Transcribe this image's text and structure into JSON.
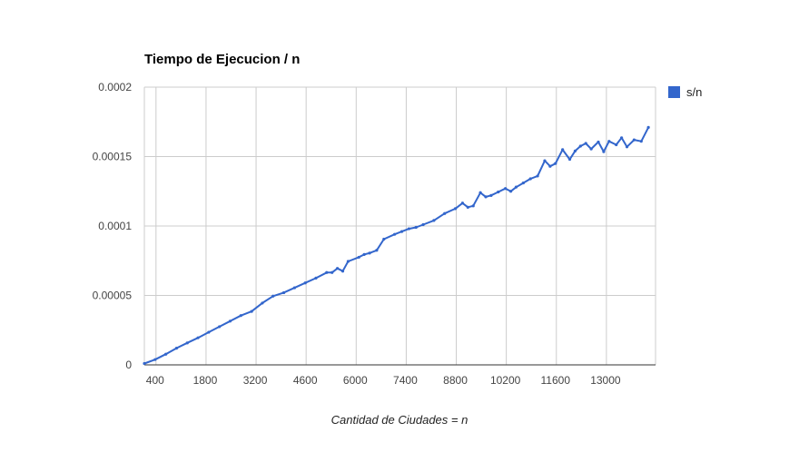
{
  "chart_data": {
    "type": "line",
    "title": "Tiempo de Ejecucion / n",
    "xlabel": "Cantidad de Ciudades = n",
    "ylabel": "",
    "xlim": [
      100,
      14400
    ],
    "ylim": [
      0,
      0.0002
    ],
    "x_tick_labels": [
      "400",
      "1800",
      "3200",
      "4600",
      "6000",
      "7400",
      "8800",
      "10200",
      "11600",
      "13000"
    ],
    "y_tick_labels": [
      "0",
      "0.00005",
      "0.0001",
      "0.00015",
      "0.0002"
    ],
    "grid": true,
    "legend_position": "right",
    "series": [
      {
        "name": "s/n",
        "color": "#3366cc",
        "x": [
          100,
          400,
          700,
          1000,
          1300,
          1600,
          1900,
          2200,
          2500,
          2800,
          3100,
          3400,
          3700,
          4000,
          4300,
          4600,
          4900,
          5200,
          5350,
          5500,
          5650,
          5800,
          6100,
          6250,
          6400,
          6600,
          6800,
          7100,
          7300,
          7500,
          7700,
          7900,
          8200,
          8500,
          8800,
          9000,
          9150,
          9300,
          9500,
          9650,
          9800,
          10000,
          10200,
          10350,
          10500,
          10700,
          10900,
          11100,
          11300,
          11450,
          11600,
          11800,
          12000,
          12150,
          12300,
          12450,
          12600,
          12800,
          12950,
          13100,
          13300,
          13450,
          13600,
          13800,
          14000,
          14200
        ],
        "values": [
          1e-06,
          3.8e-06,
          7.7e-06,
          1.2e-05,
          1.58e-05,
          1.95e-05,
          2.35e-05,
          2.75e-05,
          3.15e-05,
          3.55e-05,
          3.85e-05,
          4.45e-05,
          4.95e-05,
          5.2e-05,
          5.55e-05,
          5.9e-05,
          6.25e-05,
          6.65e-05,
          6.65e-05,
          6.95e-05,
          6.75e-05,
          7.45e-05,
          7.75e-05,
          7.95e-05,
          8.05e-05,
          8.25e-05,
          9.05e-05,
          9.4e-05,
          9.6e-05,
          9.8e-05,
          9.9e-05,
          0.000101,
          0.000104,
          0.000109,
          0.0001125,
          0.0001165,
          0.0001135,
          0.0001145,
          0.000124,
          0.000121,
          0.000122,
          0.0001245,
          0.000127,
          0.000125,
          0.000128,
          0.000131,
          0.000134,
          0.000136,
          0.000147,
          0.000143,
          0.000145,
          0.000155,
          0.000148,
          0.000154,
          0.0001575,
          0.0001595,
          0.0001555,
          0.0001605,
          0.0001535,
          0.000161,
          0.0001585,
          0.0001635,
          0.000157,
          0.000162,
          0.000161,
          0.000171
        ]
      }
    ]
  }
}
